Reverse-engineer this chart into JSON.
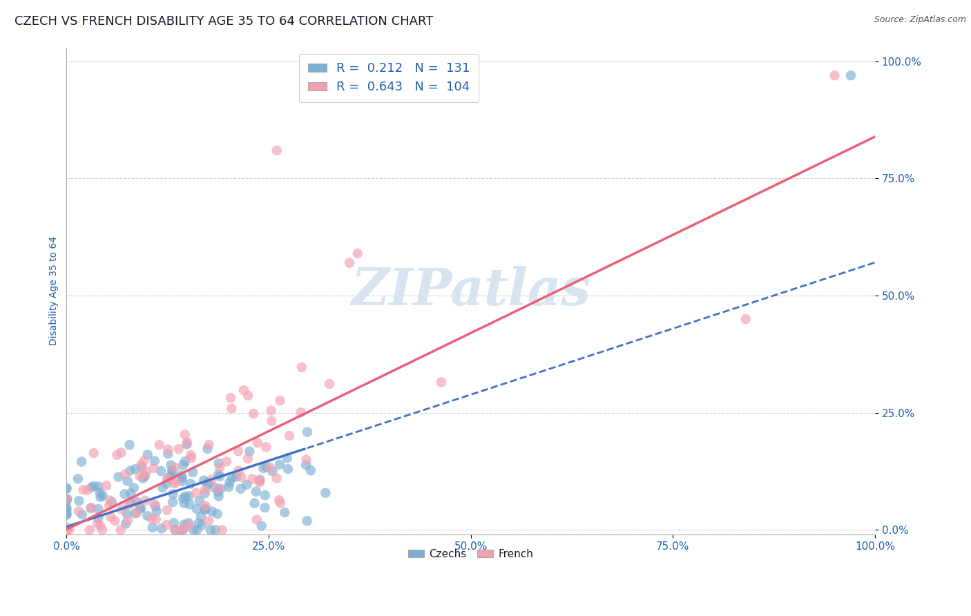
{
  "title": "CZECH VS FRENCH DISABILITY AGE 35 TO 64 CORRELATION CHART",
  "source": "Source: ZipAtlas.com",
  "ylabel": "Disability Age 35 to 64",
  "xlim": [
    0.0,
    1.0
  ],
  "ylim": [
    0.0,
    1.0
  ],
  "xticks": [
    0.0,
    0.25,
    0.5,
    0.75,
    1.0
  ],
  "xticklabels": [
    "0.0%",
    "25.0%",
    "50.0%",
    "75.0%",
    "100.0%"
  ],
  "yticks": [
    0.0,
    0.25,
    0.5,
    0.75,
    1.0
  ],
  "yticklabels": [
    "0.0%",
    "25.0%",
    "50.0%",
    "75.0%",
    "100.0%"
  ],
  "czech_R": 0.212,
  "czech_N": 131,
  "french_R": 0.643,
  "french_N": 104,
  "czech_color": "#7BAFD4",
  "french_color": "#F4A0B0",
  "czech_line_color": "#4472C4",
  "french_line_color": "#E8607A",
  "legend_text_color": "#2060B0",
  "axis_color": "#2060B0",
  "background_color": "#FFFFFF",
  "watermark_color": "#D8E4F0",
  "grid_color": "#CCCCCC",
  "title_fontsize": 13,
  "axis_label_fontsize": 10,
  "tick_fontsize": 11,
  "legend_fontsize": 13
}
